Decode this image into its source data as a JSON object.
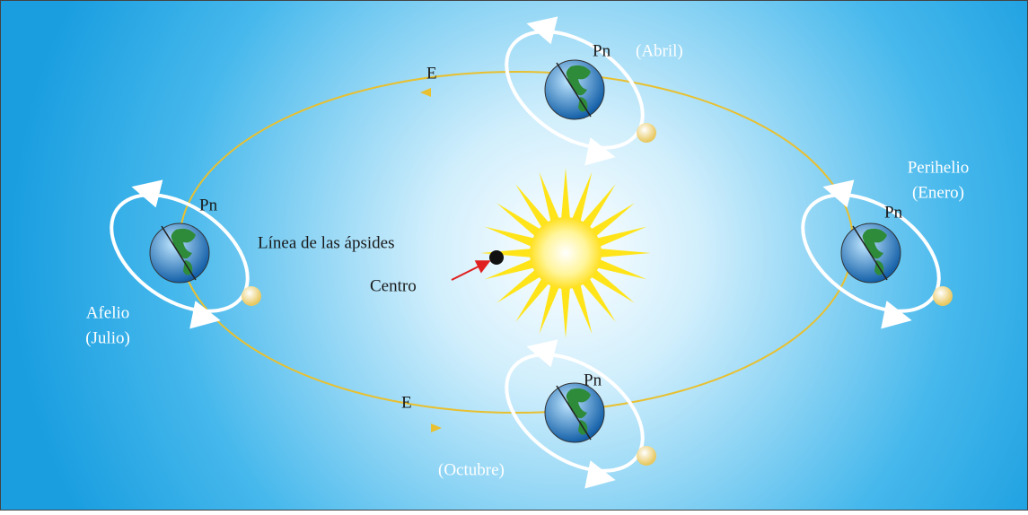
{
  "earths": [
    {
      "pole": "Pn",
      "caption": [
        "(Abril)"
      ]
    },
    {
      "pole": "Pn",
      "caption": [
        "Perihelio",
        "(Enero)"
      ]
    },
    {
      "pole": "Pn",
      "caption": [
        "(Octubre)"
      ]
    },
    {
      "pole": "Pn",
      "caption": [
        "Afelio",
        "(Julio)"
      ]
    }
  ],
  "direction_labels": [
    "E",
    "E"
  ],
  "apsides_line": "Línea de las ápsides",
  "center": "Centro"
}
